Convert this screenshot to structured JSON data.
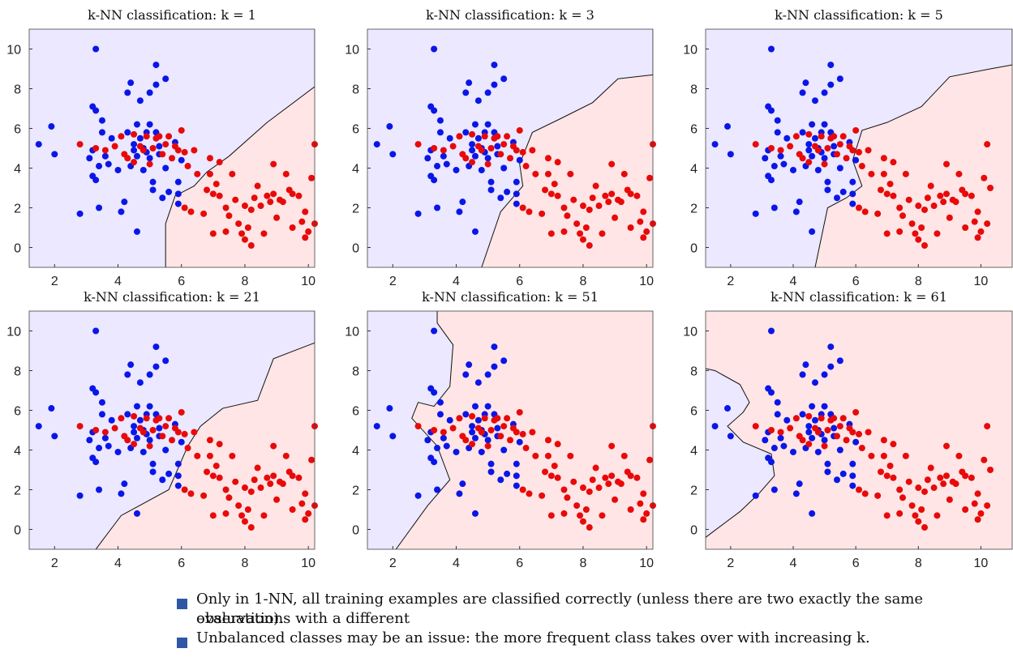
{
  "chart_data": [
    {
      "type": "scatter",
      "title": "k-NN classification: k = 1",
      "k": 1,
      "xlim": [
        1.2,
        10.2
      ],
      "ylim": [
        -1,
        11
      ],
      "xticks": [
        2,
        4,
        6,
        8,
        10
      ],
      "yticks": [
        0,
        2,
        4,
        6,
        8,
        10
      ],
      "background": "#ebe8ff",
      "overlay": "#ffe5e5",
      "boundary": [
        [
          5.5,
          -1
        ],
        [
          5.5,
          1.2
        ],
        [
          5.8,
          2.6
        ],
        [
          6.4,
          3.1
        ],
        [
          6.8,
          3.8
        ],
        [
          7.5,
          4.6
        ],
        [
          8.7,
          6.3
        ],
        [
          10.2,
          8.1
        ],
        [
          10.2,
          11
        ]
      ]
    },
    {
      "type": "scatter",
      "title": "k-NN classification: k = 3",
      "k": 3,
      "xlim": [
        1.2,
        10.2
      ],
      "ylim": [
        -1,
        11
      ],
      "xticks": [
        2,
        4,
        6,
        8,
        10
      ],
      "yticks": [
        0,
        2,
        4,
        6,
        8,
        10
      ],
      "background": "#ebe8ff",
      "overlay": "#ffe5e5",
      "boundary": [
        [
          4.8,
          -1
        ],
        [
          5.4,
          1.8
        ],
        [
          6.1,
          3.1
        ],
        [
          6.0,
          4.2
        ],
        [
          6.4,
          5.8
        ],
        [
          7.3,
          6.5
        ],
        [
          8.3,
          7.3
        ],
        [
          9.1,
          8.5
        ],
        [
          10.2,
          8.7
        ],
        [
          10.2,
          11
        ]
      ]
    },
    {
      "type": "scatter",
      "title": "k-NN classification: k = 5",
      "k": 5,
      "xlim": [
        1.2,
        11
      ],
      "ylim": [
        -1,
        11
      ],
      "xticks": [
        2,
        4,
        6,
        8,
        10
      ],
      "yticks": [
        0,
        2,
        4,
        6,
        8,
        10
      ],
      "background": "#ebe8ff",
      "overlay": "#ffe5e5",
      "boundary": [
        [
          4.7,
          -1
        ],
        [
          5.1,
          2.0
        ],
        [
          5.7,
          2.5
        ],
        [
          6.2,
          3.1
        ],
        [
          5.9,
          4.4
        ],
        [
          6.2,
          5.9
        ],
        [
          7.0,
          6.3
        ],
        [
          8.1,
          7.1
        ],
        [
          9.0,
          8.6
        ],
        [
          10.3,
          9.0
        ],
        [
          11,
          9.2
        ],
        [
          11,
          11
        ]
      ]
    },
    {
      "type": "scatter",
      "title": "k-NN classification: k = 21",
      "k": 21,
      "xlim": [
        1.2,
        10.2
      ],
      "ylim": [
        -1,
        11
      ],
      "xticks": [
        2,
        4,
        6,
        8,
        10
      ],
      "yticks": [
        0,
        2,
        4,
        6,
        8,
        10
      ],
      "background": "#ebe8ff",
      "overlay": "#ffe5e5",
      "boundary": [
        [
          3.3,
          -1
        ],
        [
          4.1,
          0.7
        ],
        [
          5.6,
          2.0
        ],
        [
          6.2,
          4.2
        ],
        [
          6.6,
          5.2
        ],
        [
          7.3,
          6.1
        ],
        [
          8.4,
          6.5
        ],
        [
          8.9,
          8.6
        ],
        [
          10.2,
          9.4
        ],
        [
          10.2,
          11
        ]
      ]
    },
    {
      "type": "scatter",
      "title": "k-NN classification: k = 51",
      "k": 51,
      "xlim": [
        1.2,
        10.2
      ],
      "ylim": [
        -1,
        11
      ],
      "xticks": [
        2,
        4,
        6,
        8,
        10
      ],
      "yticks": [
        0,
        2,
        4,
        6,
        8,
        10
      ],
      "background": "#ebe8ff",
      "overlay": "#ffe5e5",
      "boundary": [
        [
          2.1,
          -1
        ],
        [
          3.1,
          1.2
        ],
        [
          3.8,
          2.5
        ],
        [
          3.4,
          4.2
        ],
        [
          2.6,
          5.6
        ],
        [
          2.8,
          6.4
        ],
        [
          3.3,
          6.2
        ],
        [
          3.8,
          7.2
        ],
        [
          3.9,
          9.3
        ],
        [
          3.4,
          10.4
        ],
        [
          3.4,
          11
        ]
      ]
    },
    {
      "type": "scatter",
      "title": "k-NN classification: k = 61",
      "k": 61,
      "xlim": [
        1.2,
        11
      ],
      "ylim": [
        -1,
        11
      ],
      "xticks": [
        2,
        4,
        6,
        8,
        10
      ],
      "yticks": [
        0,
        2,
        4,
        6,
        8,
        10
      ],
      "background": "#ebe8ff",
      "overlay": "#ffe5e5",
      "boundary": [
        [
          1.2,
          -0.4
        ],
        [
          2.3,
          0.9
        ],
        [
          2.9,
          1.8
        ],
        [
          3.4,
          2.7
        ],
        [
          3.3,
          3.8
        ],
        [
          2.4,
          4.4
        ],
        [
          1.9,
          5.2
        ],
        [
          2.4,
          5.9
        ],
        [
          2.6,
          6.4
        ],
        [
          2.3,
          7.3
        ],
        [
          1.5,
          8.0
        ],
        [
          1.2,
          8.1
        ]
      ]
    }
  ],
  "series": [
    {
      "color": "#0a16e8",
      "points": [
        [
          1.5,
          5.2
        ],
        [
          1.9,
          6.1
        ],
        [
          2.0,
          4.7
        ],
        [
          2.8,
          1.7
        ],
        [
          3.3,
          10.0
        ],
        [
          3.2,
          7.1
        ],
        [
          3.3,
          6.9
        ],
        [
          3.2,
          4.9
        ],
        [
          3.1,
          4.5
        ],
        [
          3.2,
          3.6
        ],
        [
          3.3,
          3.4
        ],
        [
          3.4,
          4.1
        ],
        [
          3.4,
          2.0
        ],
        [
          3.5,
          5.8
        ],
        [
          3.5,
          6.4
        ],
        [
          3.6,
          4.6
        ],
        [
          3.7,
          4.2
        ],
        [
          3.8,
          5.5
        ],
        [
          4.0,
          3.9
        ],
        [
          4.1,
          1.8
        ],
        [
          4.2,
          2.3
        ],
        [
          4.3,
          5.8
        ],
        [
          4.3,
          7.8
        ],
        [
          4.4,
          4.1
        ],
        [
          4.4,
          8.3
        ],
        [
          4.5,
          5.2
        ],
        [
          4.5,
          4.9
        ],
        [
          4.6,
          4.6
        ],
        [
          4.6,
          0.8
        ],
        [
          4.6,
          6.2
        ],
        [
          4.7,
          5.5
        ],
        [
          4.7,
          7.4
        ],
        [
          4.8,
          3.9
        ],
        [
          4.8,
          5.0
        ],
        [
          4.9,
          4.8
        ],
        [
          4.9,
          5.8
        ],
        [
          5.0,
          7.8
        ],
        [
          5.0,
          4.5
        ],
        [
          5.1,
          3.3
        ],
        [
          5.1,
          2.9
        ],
        [
          5.2,
          8.2
        ],
        [
          5.2,
          9.2
        ],
        [
          5.2,
          5.8
        ],
        [
          5.3,
          5.1
        ],
        [
          5.3,
          4.7
        ],
        [
          5.4,
          2.5
        ],
        [
          5.5,
          8.5
        ],
        [
          5.6,
          2.8
        ],
        [
          5.8,
          5.3
        ],
        [
          5.9,
          3.3
        ],
        [
          5.9,
          2.7
        ],
        [
          5.9,
          2.2
        ],
        [
          6.0,
          4.4
        ],
        [
          5.5,
          4.0
        ],
        [
          5.0,
          6.2
        ]
      ]
    },
    {
      "color": "#e80a0a",
      "points": [
        [
          2.8,
          5.2
        ],
        [
          3.3,
          5.0
        ],
        [
          3.6,
          4.9
        ],
        [
          3.9,
          5.1
        ],
        [
          4.1,
          5.6
        ],
        [
          4.2,
          4.7
        ],
        [
          4.3,
          4.5
        ],
        [
          4.5,
          5.7
        ],
        [
          4.5,
          4.3
        ],
        [
          4.7,
          5.1
        ],
        [
          4.8,
          4.9
        ],
        [
          4.9,
          5.6
        ],
        [
          5.0,
          4.2
        ],
        [
          5.1,
          5.0
        ],
        [
          5.2,
          5.5
        ],
        [
          5.3,
          5.6
        ],
        [
          5.4,
          4.7
        ],
        [
          5.5,
          5.2
        ],
        [
          5.6,
          5.6
        ],
        [
          5.7,
          4.5
        ],
        [
          5.8,
          5.1
        ],
        [
          5.9,
          4.9
        ],
        [
          6.0,
          5.9
        ],
        [
          6.1,
          4.8
        ],
        [
          6.1,
          2.0
        ],
        [
          6.2,
          4.1
        ],
        [
          6.3,
          1.8
        ],
        [
          6.4,
          4.9
        ],
        [
          6.5,
          3.7
        ],
        [
          6.7,
          1.7
        ],
        [
          6.8,
          2.9
        ],
        [
          6.9,
          4.5
        ],
        [
          6.9,
          3.7
        ],
        [
          7.0,
          0.7
        ],
        [
          7.0,
          2.7
        ],
        [
          7.1,
          3.2
        ],
        [
          7.2,
          2.6
        ],
        [
          7.2,
          4.3
        ],
        [
          7.4,
          0.8
        ],
        [
          7.4,
          2.0
        ],
        [
          7.5,
          1.6
        ],
        [
          7.6,
          3.7
        ],
        [
          7.7,
          2.4
        ],
        [
          7.8,
          1.2
        ],
        [
          7.9,
          0.7
        ],
        [
          8.0,
          2.1
        ],
        [
          8.0,
          0.4
        ],
        [
          8.1,
          1.0
        ],
        [
          8.2,
          0.1
        ],
        [
          8.2,
          1.9
        ],
        [
          8.3,
          2.5
        ],
        [
          8.4,
          3.1
        ],
        [
          8.5,
          2.1
        ],
        [
          8.6,
          0.7
        ],
        [
          8.7,
          2.6
        ],
        [
          8.8,
          2.3
        ],
        [
          8.9,
          2.7
        ],
        [
          8.9,
          4.2
        ],
        [
          9.0,
          1.5
        ],
        [
          9.1,
          2.4
        ],
        [
          9.2,
          2.3
        ],
        [
          9.3,
          3.7
        ],
        [
          9.4,
          2.9
        ],
        [
          9.5,
          1.0
        ],
        [
          9.5,
          2.7
        ],
        [
          9.7,
          2.6
        ],
        [
          9.8,
          1.3
        ],
        [
          9.9,
          1.8
        ],
        [
          10.0,
          0.8
        ],
        [
          10.1,
          3.5
        ],
        [
          10.2,
          5.2
        ],
        [
          10.2,
          1.2
        ],
        [
          10.3,
          3.0
        ],
        [
          9.9,
          0.5
        ]
      ]
    }
  ],
  "notes": [
    "Only in 1-NN, all training examples are classified correctly (unless there are two exactly the same observations with a different",
    "evaluation).",
    "Unbalanced classes may be an issue: the more frequent class takes over with increasing k."
  ]
}
